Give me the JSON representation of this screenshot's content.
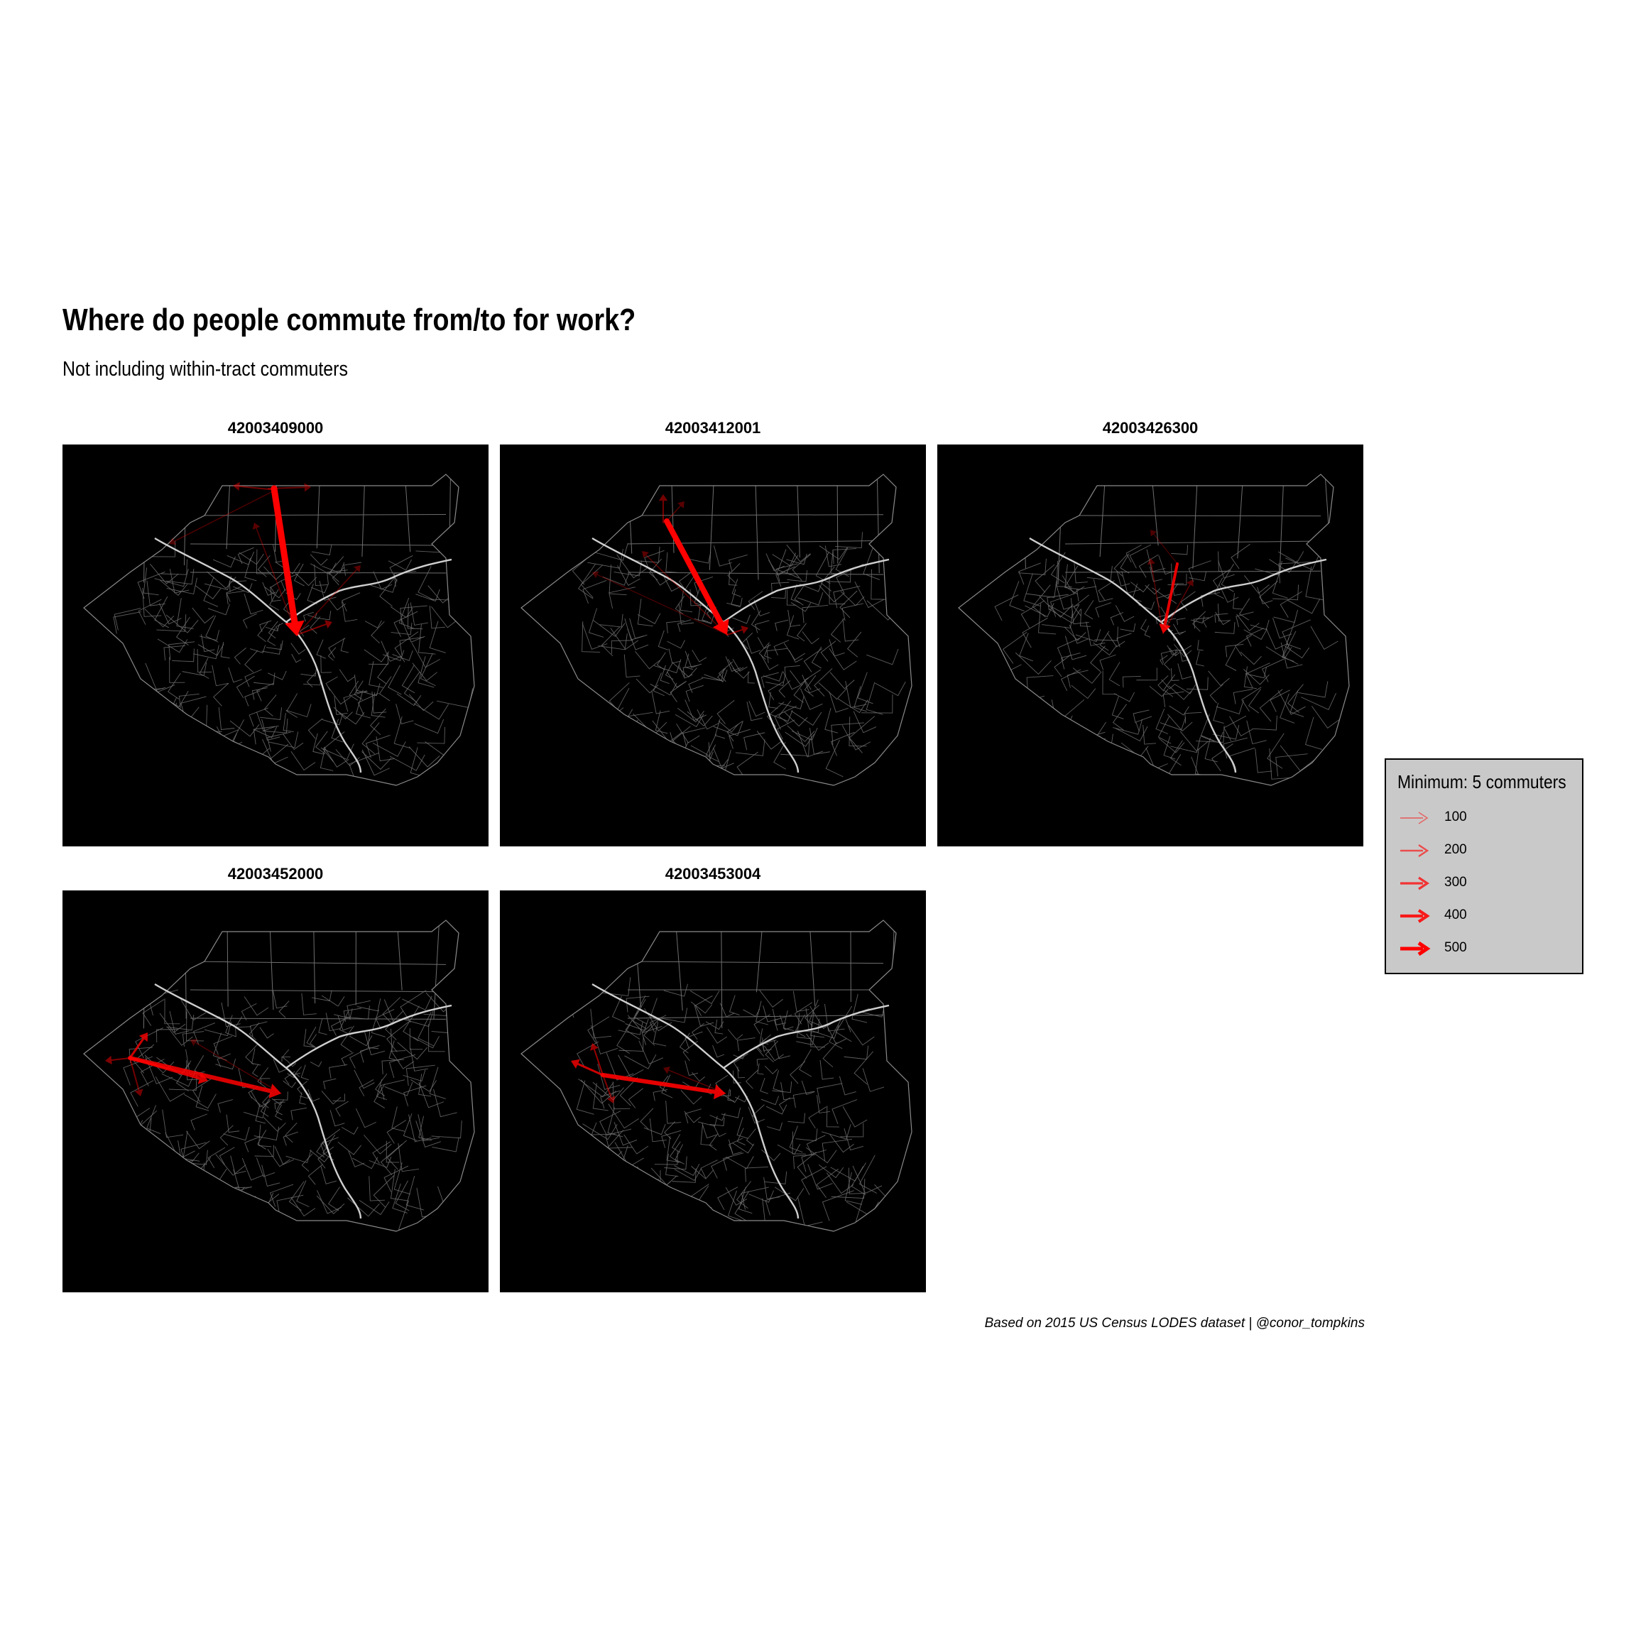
{
  "title": "Where do people commute from/to for work?",
  "subtitle": "Not including within-tract commuters",
  "caption": "Based on 2015 US Census LODES dataset | @conor_tompkins",
  "colors": {
    "background": "#000000",
    "tract_lines": "#6e6e6e",
    "river": "#cfcfcf",
    "arrow": "#ff0000",
    "legend_fill": "#c9c9c9"
  },
  "panels": [
    {
      "id": "42003409000"
    },
    {
      "id": "42003412001"
    },
    {
      "id": "42003426300"
    },
    {
      "id": "42003452000"
    },
    {
      "id": "42003453004"
    }
  ],
  "legend": {
    "title": "Minimum: 5 commuters",
    "items": [
      {
        "label": "100",
        "value": 100
      },
      {
        "label": "200",
        "value": 200
      },
      {
        "label": "300",
        "value": 300
      },
      {
        "label": "400",
        "value": 400
      },
      {
        "label": "500",
        "value": 500
      }
    ]
  }
}
